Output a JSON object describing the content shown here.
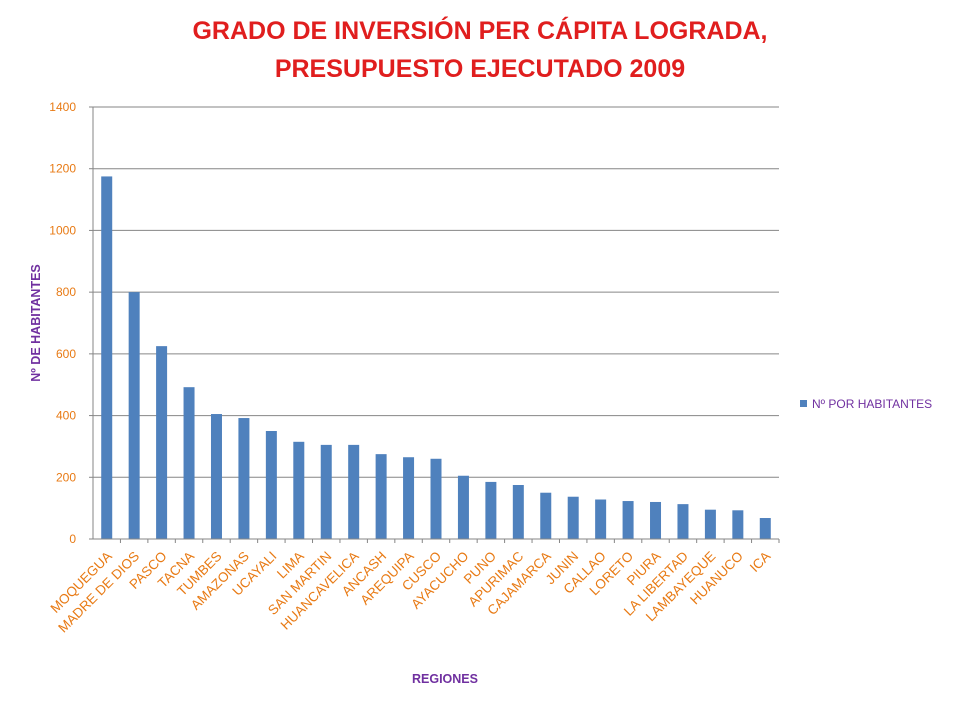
{
  "chart_data": {
    "type": "bar",
    "title_line1": "GRADO DE INVERSIÓN PER CÁPITA LOGRADA,",
    "title_line2": "PRESUPUESTO EJECUTADO 2009",
    "xlabel": "REGIONES",
    "ylabel": "Nº DE HABITANTES",
    "ylim": [
      0,
      1400
    ],
    "yticks": [
      0,
      200,
      400,
      600,
      800,
      1000,
      1200,
      1400
    ],
    "grid": true,
    "legend_position": "right",
    "categories": [
      "MOQUEGUA",
      "MADRE DE DIOS",
      "PASCO",
      "TACNA",
      "TUMBES",
      "AMAZONAS",
      "UCAYALI",
      "LIMA",
      "SAN MARTIN",
      "HUANCAVELICA",
      "ANCASH",
      "AREQUIPA",
      "CUSCO",
      "AYACUCHO",
      "PUNO",
      "APURIMAC",
      "CAJAMARCA",
      "JUNIN",
      "CALLAO",
      "LORETO",
      "PIURA",
      "LA LIBERTAD",
      "LAMBAYEQUE",
      "HUANUCO",
      "ICA"
    ],
    "series": [
      {
        "name": "Nº POR HABITANTES",
        "color": "#4f81bd",
        "values": [
          1175,
          800,
          625,
          492,
          405,
          392,
          350,
          315,
          305,
          305,
          275,
          265,
          260,
          205,
          185,
          175,
          150,
          137,
          128,
          123,
          120,
          113,
          95,
          93,
          68
        ]
      }
    ]
  },
  "colors": {
    "title": "#e01e1e",
    "ticks": "#e87a14",
    "axis_title": "#7030a0",
    "bar": "#4f81bd",
    "grid": "#868686"
  }
}
